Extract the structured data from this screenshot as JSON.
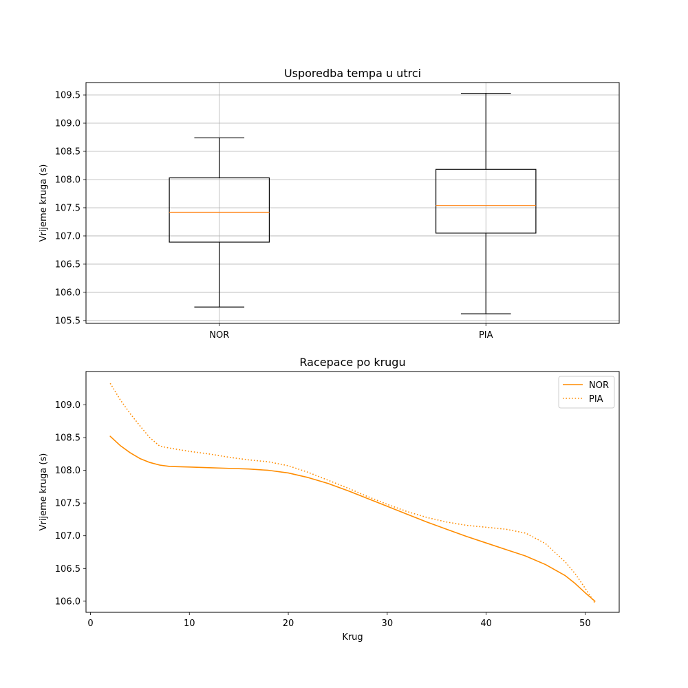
{
  "figure": {
    "background": "#ffffff",
    "grid_color": "#b0b0b0",
    "median_color": "#ff7f0e",
    "line_color": "#ff8c00"
  },
  "chart_data": [
    {
      "type": "box",
      "title": "Usporedba tempa u utrci",
      "xlabel": "",
      "ylabel": "Vrijeme kruga (s)",
      "categories": [
        "NOR",
        "PIA"
      ],
      "ylim": [
        105.45,
        109.72
      ],
      "yticks": [
        "105.5",
        "106.0",
        "106.5",
        "107.0",
        "107.5",
        "108.0",
        "108.5",
        "109.0",
        "109.5"
      ],
      "grid": true,
      "boxes": [
        {
          "name": "NOR",
          "whisker_low": 105.74,
          "q1": 106.89,
          "median": 107.42,
          "q3": 108.03,
          "whisker_high": 108.74
        },
        {
          "name": "PIA",
          "whisker_low": 105.62,
          "q1": 107.05,
          "median": 107.54,
          "q3": 108.18,
          "whisker_high": 109.53
        }
      ]
    },
    {
      "type": "line",
      "title": "Racepace po krugu",
      "xlabel": "Krug",
      "ylabel": "Vrijeme kruga (s)",
      "xlim": [
        -0.45,
        53.45
      ],
      "ylim": [
        105.83,
        109.51
      ],
      "xticks": [
        "0",
        "10",
        "20",
        "30",
        "40",
        "50"
      ],
      "yticks": [
        "106.0",
        "106.5",
        "107.0",
        "107.5",
        "108.0",
        "108.5",
        "109.0"
      ],
      "grid": false,
      "legend": {
        "position": "top-right"
      },
      "x": [
        2,
        3,
        4,
        5,
        6,
        7,
        8,
        10,
        12,
        14,
        16,
        18,
        20,
        22,
        24,
        26,
        28,
        30,
        32,
        34,
        36,
        38,
        40,
        42,
        44,
        46,
        48,
        49,
        50,
        51
      ],
      "series": [
        {
          "name": "NOR",
          "style": "solid",
          "values": [
            108.52,
            108.38,
            108.27,
            108.18,
            108.12,
            108.08,
            108.06,
            108.05,
            108.04,
            108.03,
            108.02,
            108.0,
            107.96,
            107.89,
            107.8,
            107.69,
            107.57,
            107.45,
            107.33,
            107.21,
            107.1,
            106.99,
            106.89,
            106.79,
            106.69,
            106.56,
            106.39,
            106.27,
            106.13,
            106.0
          ]
        },
        {
          "name": "PIA",
          "style": "dotted",
          "values": [
            109.33,
            109.08,
            108.87,
            108.68,
            108.5,
            108.37,
            108.34,
            108.29,
            108.25,
            108.2,
            108.16,
            108.13,
            108.07,
            107.97,
            107.85,
            107.73,
            107.6,
            107.48,
            107.37,
            107.28,
            107.21,
            107.16,
            107.13,
            107.1,
            107.04,
            106.88,
            106.6,
            106.42,
            106.2,
            105.97
          ]
        }
      ]
    }
  ]
}
